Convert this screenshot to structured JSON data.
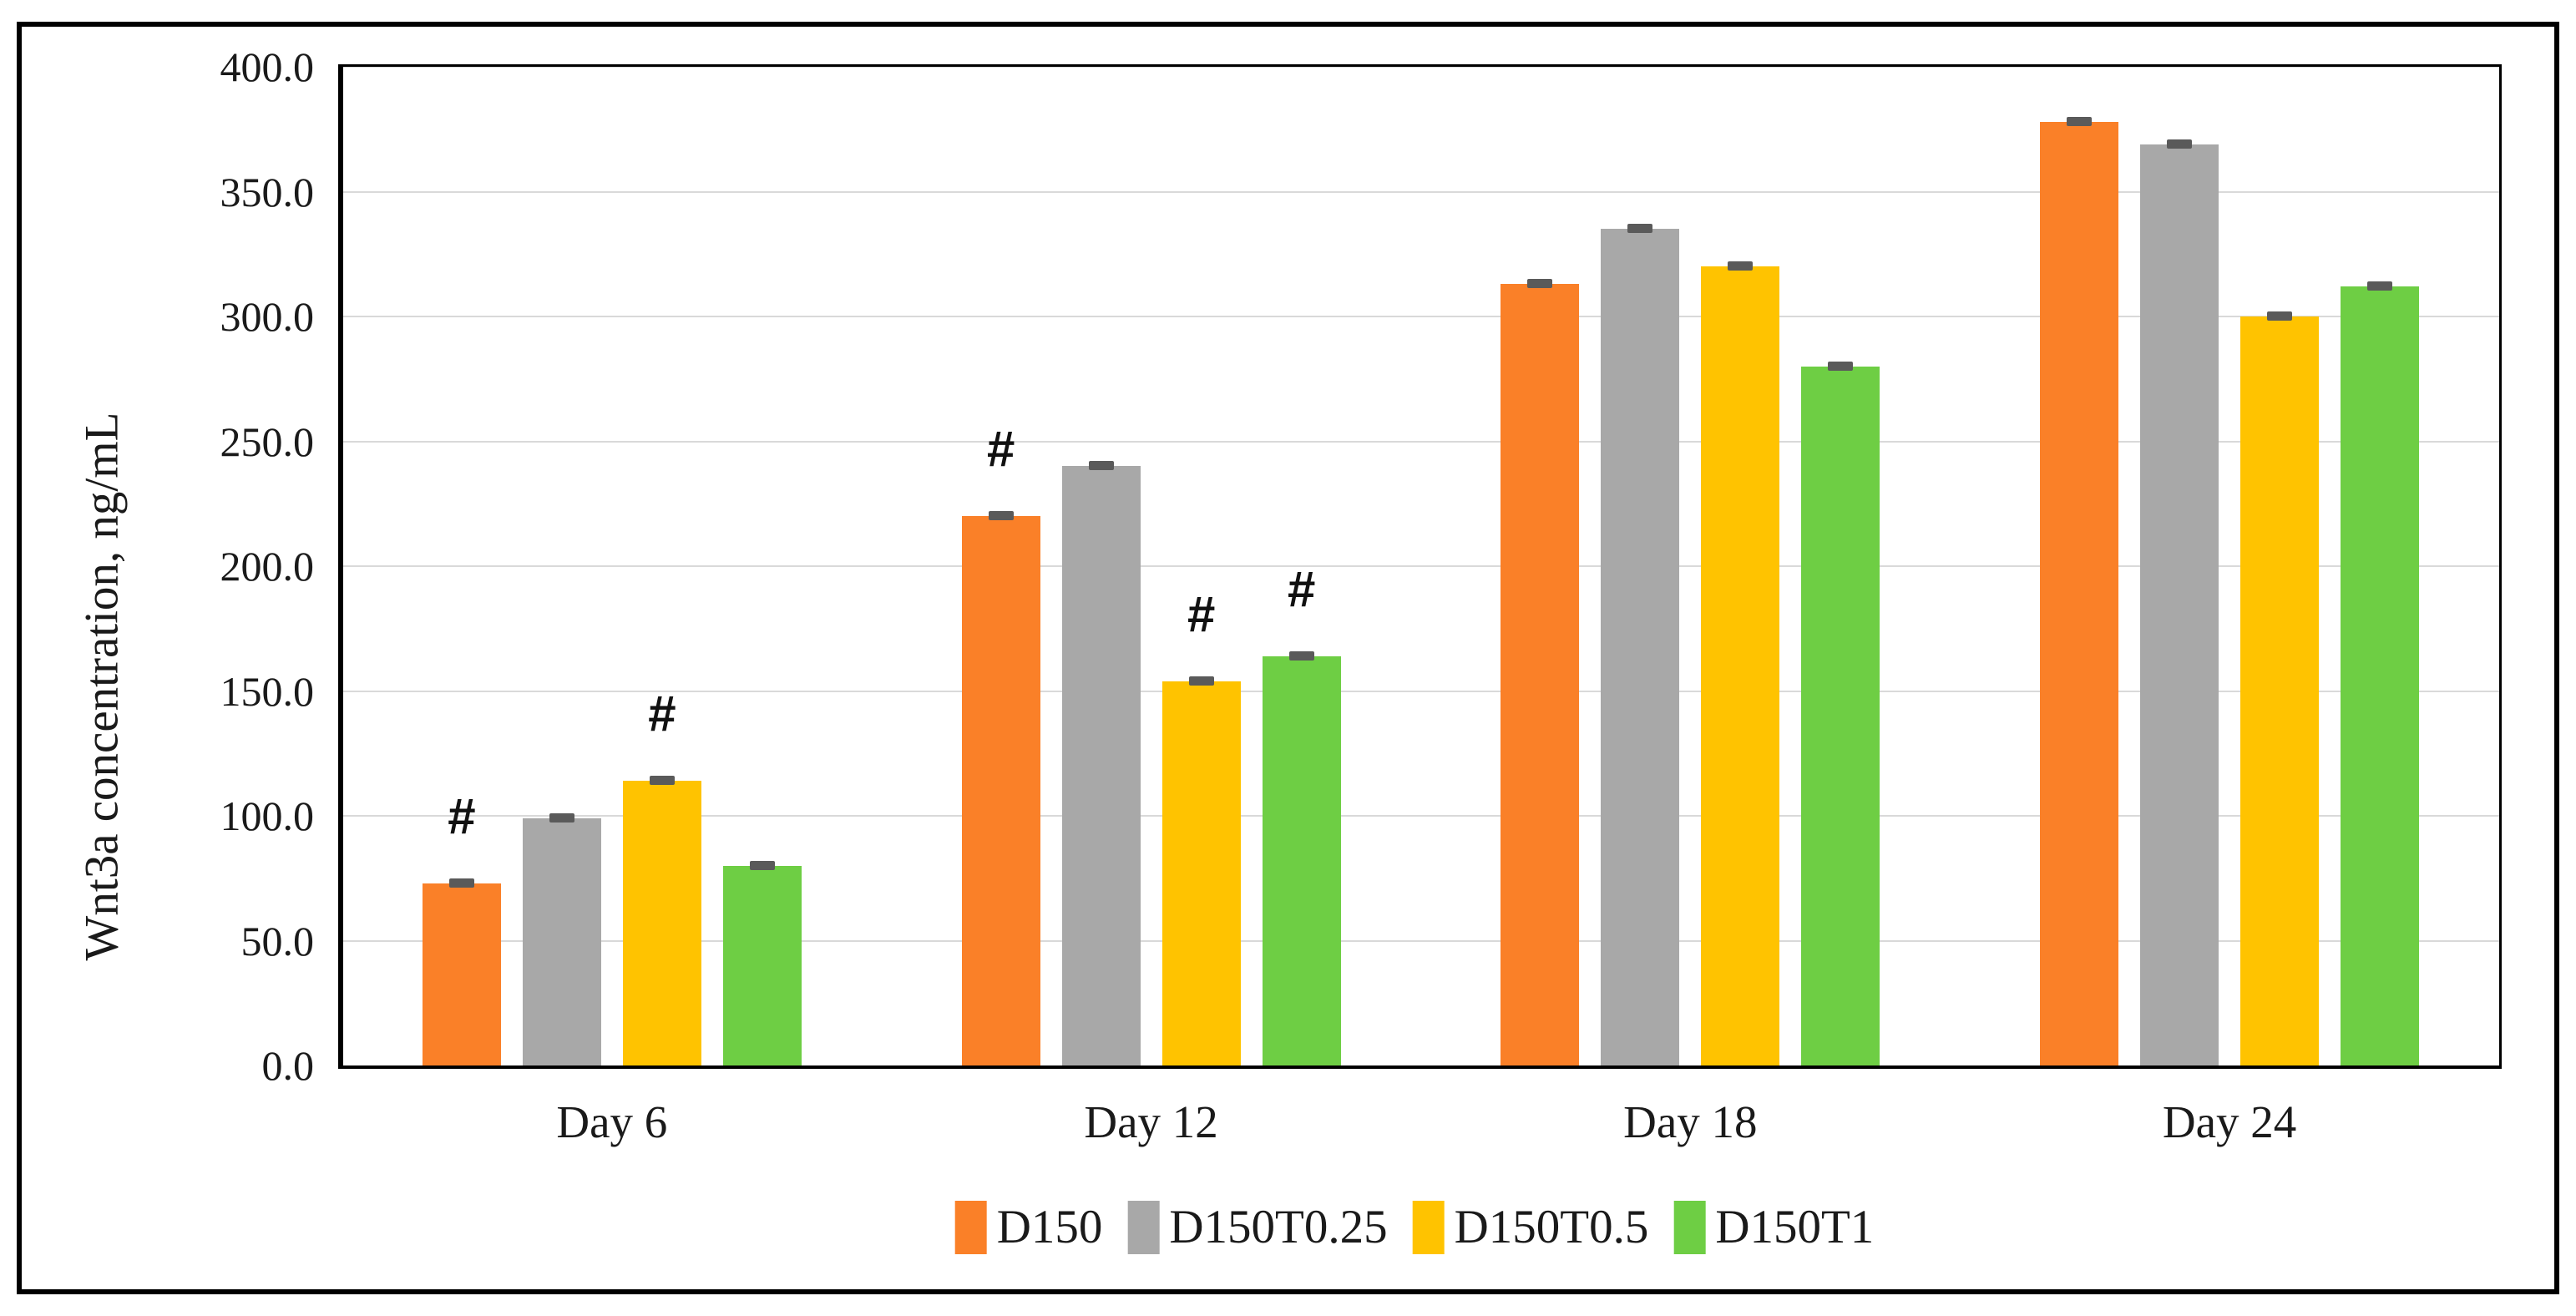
{
  "figure": {
    "background": "#ffffff",
    "frame_border_color": "#000000"
  },
  "chart_data": {
    "type": "bar",
    "title": "",
    "xlabel": "",
    "ylabel": "Wnt3a concentration, ng/mL",
    "categories": [
      "Day 6",
      "Day 12",
      "Day 18",
      "Day 24"
    ],
    "series": [
      {
        "name": "D150",
        "color": "#FA8028",
        "values": [
          73,
          220,
          313,
          378
        ],
        "errors": [
          3,
          3,
          3,
          3
        ]
      },
      {
        "name": "D150T0.25",
        "color": "#A8A8A8",
        "values": [
          99,
          240,
          335,
          369
        ],
        "errors": [
          3,
          3,
          3,
          3
        ]
      },
      {
        "name": "D150T0.5",
        "color": "#FFC300",
        "values": [
          114,
          154,
          320,
          300
        ],
        "errors": [
          3,
          3,
          3,
          3
        ]
      },
      {
        "name": "D150T1",
        "color": "#6ECE44",
        "values": [
          80,
          164,
          280,
          312
        ],
        "errors": [
          3,
          3,
          3,
          3
        ]
      }
    ],
    "annotations": [
      {
        "category": "Day 6",
        "series": "D150",
        "symbol": "#"
      },
      {
        "category": "Day 6",
        "series": "D150T0.5",
        "symbol": "#"
      },
      {
        "category": "Day 12",
        "series": "D150",
        "symbol": "#"
      },
      {
        "category": "Day 12",
        "series": "D150T0.5",
        "symbol": "#"
      },
      {
        "category": "Day 12",
        "series": "D150T1",
        "symbol": "#"
      }
    ],
    "ylim": [
      0,
      400
    ],
    "ytick_step": 50,
    "ytick_decimals": 1,
    "grid": true,
    "gridline_color": "#D9D9D9",
    "axis_color": "#000000",
    "error_bar_color": "#5A5A5A",
    "text_color": "#1a1a1a",
    "legend_position": "bottom"
  }
}
